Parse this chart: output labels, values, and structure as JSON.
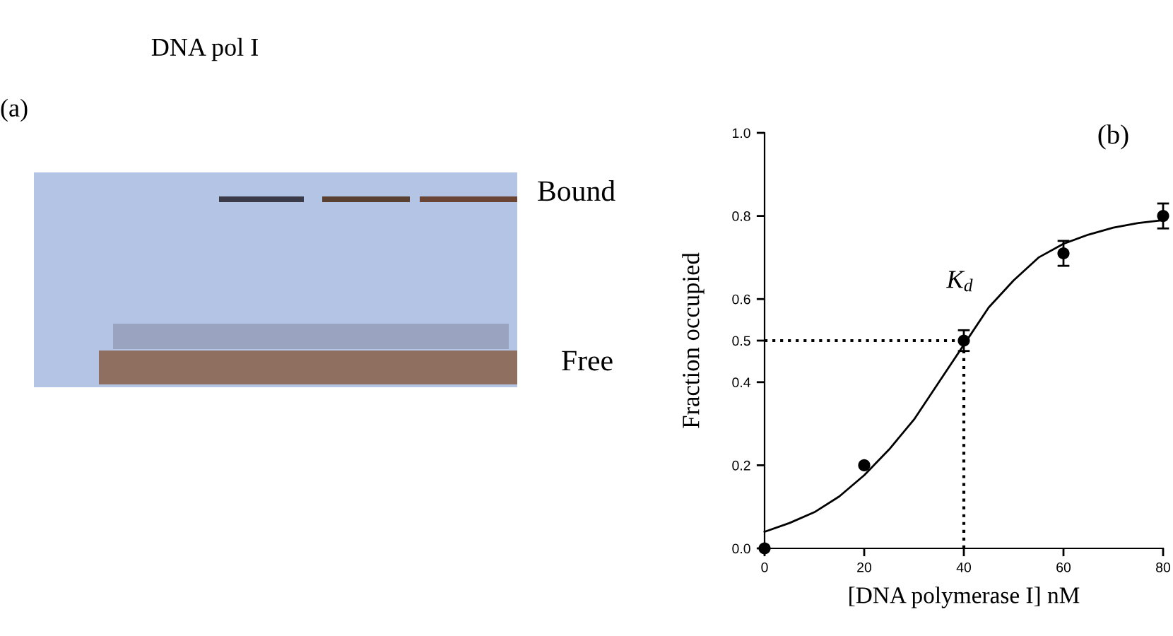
{
  "chart_data": {
    "type": "scatter",
    "xlabel": "[DNA polymerase I] nM",
    "ylabel": "Fraction occupied",
    "xlim": [
      0,
      80
    ],
    "ylim": [
      0,
      1
    ],
    "xticks": [
      0,
      20,
      40,
      60,
      80
    ],
    "yticks": [
      {
        "value": 0,
        "label": "0.0"
      },
      0.2,
      0.4,
      0.5,
      0.6,
      0.8,
      {
        "value": 1,
        "label": "1.0"
      }
    ],
    "series": [
      {
        "x": [
          0,
          20,
          40,
          60,
          80
        ],
        "values": [
          0.0,
          0.2,
          0.5,
          0.71,
          0.8
        ],
        "errors": [
          null,
          null,
          0.025,
          0.03,
          0.03
        ],
        "color": "#000000",
        "marker": "circle"
      },
      {
        "type": "line",
        "x": [
          0,
          5,
          10,
          15,
          20,
          25,
          30,
          35,
          40,
          45,
          50,
          55,
          60,
          65,
          70,
          75,
          80
        ],
        "values": [
          0.04,
          0.061,
          0.087,
          0.125,
          0.176,
          0.238,
          0.31,
          0.4,
          0.49,
          0.58,
          0.645,
          0.7,
          0.733,
          0.755,
          0.772,
          0.783,
          0.79
        ],
        "color": "#000000",
        "line_style": "solid"
      },
      {
        "type": "line",
        "x": [
          0,
          40
        ],
        "values": [
          0.5,
          0.5
        ],
        "color": "#000000",
        "line_style": "dotted"
      },
      {
        "type": "line",
        "x": [
          40,
          40
        ],
        "values": [
          0,
          0.5
        ],
        "color": "#000000",
        "line_style": "dotted"
      }
    ],
    "annotations": [
      "DNA pol I",
      "(a)",
      "Bound",
      "Free",
      "(b)",
      {
        "text": "K$_{d}$",
        "x": 40,
        "y": 0.5
      }
    ]
  }
}
